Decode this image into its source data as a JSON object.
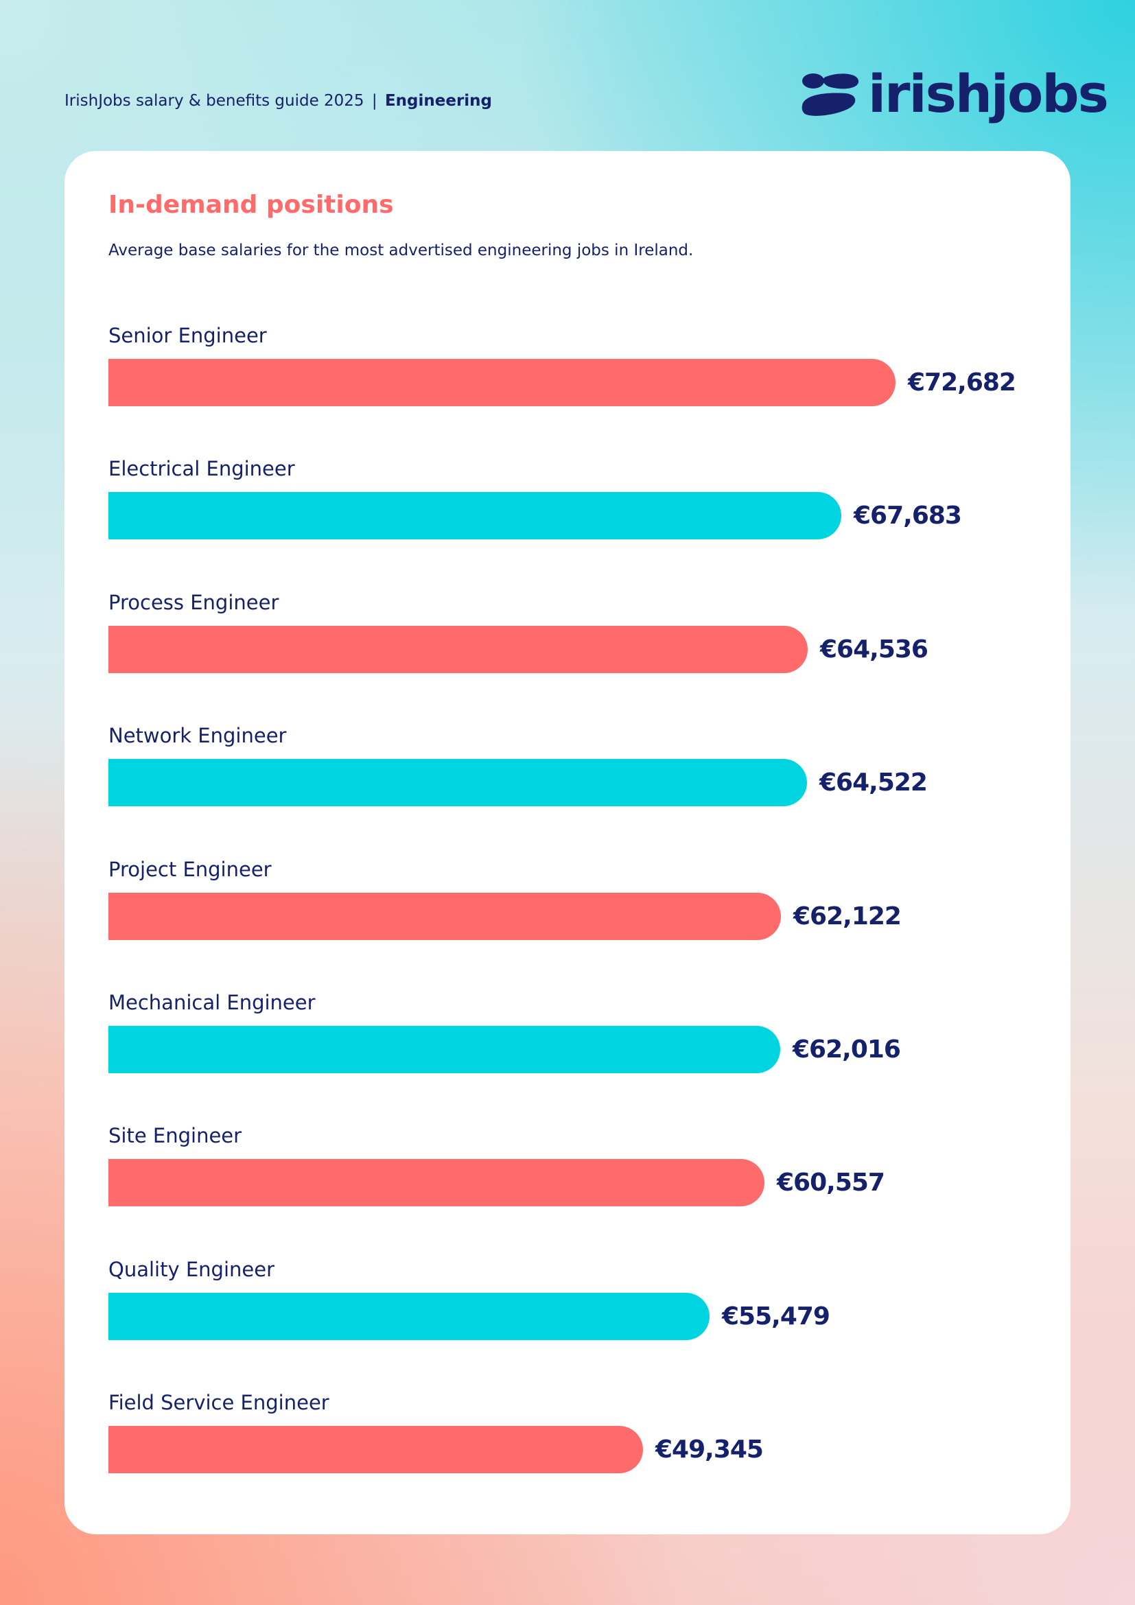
{
  "header": {
    "guide_title": "IrishJobs salary & benefits guide 2025",
    "separator": "|",
    "section": "Engineering"
  },
  "logo": {
    "wordmark": "irishjobs",
    "icon": "irishjobs-logo-icon"
  },
  "colors": {
    "accent_coral": "#ff6b6b",
    "accent_cyan": "#00d4e0",
    "navy": "#15216b"
  },
  "chart_data": {
    "type": "bar",
    "orientation": "horizontal",
    "title": "In-demand positions",
    "subtitle": "Average base salaries for the most advertised engineering jobs in Ireland.",
    "categories": [
      "Senior Engineer",
      "Electrical Engineer",
      "Process Engineer",
      "Network Engineer",
      "Project Engineer",
      "Mechanical Engineer",
      "Site Engineer",
      "Quality Engineer",
      "Field Service Engineer"
    ],
    "values": [
      72682,
      67683,
      64536,
      64522,
      62122,
      62016,
      60557,
      55479,
      49345
    ],
    "value_labels": [
      "€72,682",
      "€67,683",
      "€64,536",
      "€64,522",
      "€62,122",
      "€62,016",
      "€60,557",
      "€55,479",
      "€49,345"
    ],
    "bar_colors": [
      "#ff6b6b",
      "#00d4e0",
      "#ff6b6b",
      "#00d4e0",
      "#ff6b6b",
      "#00d4e0",
      "#ff6b6b",
      "#00d4e0",
      "#ff6b6b"
    ],
    "xlim": [
      0,
      73500
    ],
    "grid": false,
    "legend": "none"
  }
}
